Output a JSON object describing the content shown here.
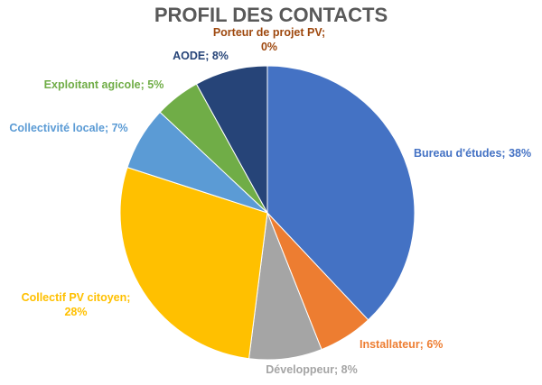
{
  "chart_data": {
    "type": "pie",
    "title": "PROFIL DES CONTACTS",
    "slices": [
      {
        "label": "Bureau d'études; 38%",
        "value": 38,
        "color": "#4472C4"
      },
      {
        "label": "Installateur; 6%",
        "value": 6,
        "color": "#ED7D31"
      },
      {
        "label": "Développeur; 8%",
        "value": 8,
        "color": "#A5A5A5"
      },
      {
        "label": "Collectif PV citoyen; 28%",
        "value": 28,
        "color": "#FFC000"
      },
      {
        "label": "Collectivité locale; 7%",
        "value": 7,
        "color": "#5B9BD5"
      },
      {
        "label": "Exploitant agicole; 5%",
        "value": 5,
        "color": "#70AD47"
      },
      {
        "label": "AODE; 8%",
        "value": 8,
        "color": "#264478"
      },
      {
        "label": "Porteur de projet PV; 0%",
        "value": 0,
        "color": "#9E480E"
      }
    ],
    "legend": "none"
  }
}
